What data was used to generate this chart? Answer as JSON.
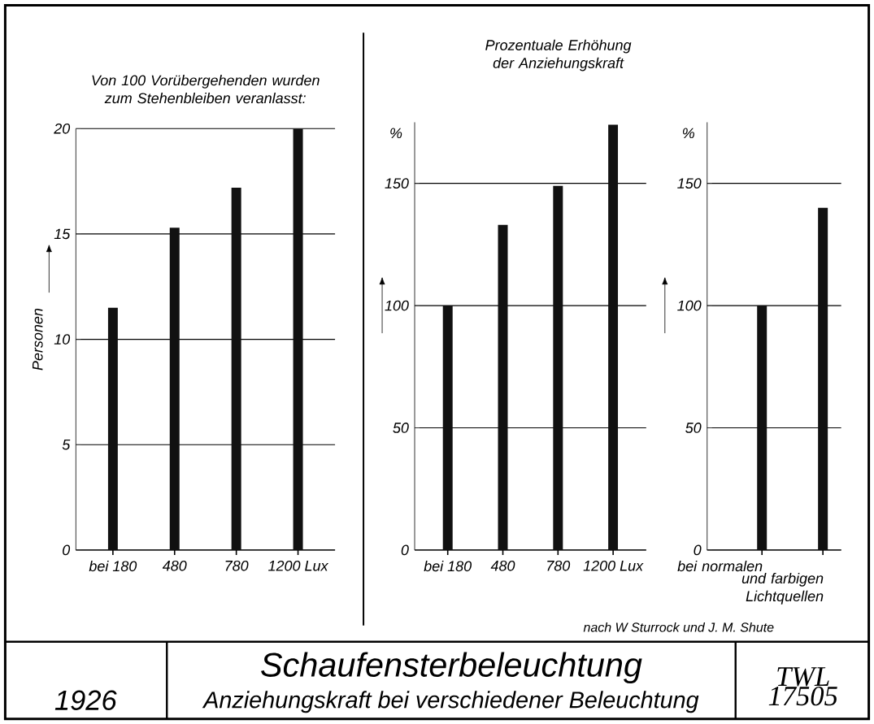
{
  "chart_data": [
    {
      "type": "bar",
      "title": "Von 100 Vorübergehenden wurden zum Stehenbleiben veranlasst:",
      "ylabel": "Personen",
      "categories": [
        "bei 180",
        "480",
        "780",
        "1200 Lux"
      ],
      "values": [
        11.5,
        15.3,
        17.2,
        20
      ],
      "color": "#111111",
      "ylim": [
        0,
        20
      ],
      "yticks": [
        0,
        5,
        10,
        15,
        20
      ],
      "grid": "y",
      "annotations": [
        "1926",
        "Schaufensterbeleuchtung",
        "Anziehungskraft bei verschiedener Beleuchtung",
        "TWL 17505"
      ]
    },
    {
      "type": "bar",
      "title": "Prozentuale Erhöhung der Anziehungskraft",
      "ylabel": "%",
      "categories": [
        "bei 180",
        "480",
        "780",
        "1200 Lux"
      ],
      "values": [
        100,
        133,
        149,
        174
      ],
      "color": "#111111",
      "ylim": [
        0,
        175
      ],
      "yticks": [
        0,
        50,
        100,
        150
      ],
      "grid": "y"
    },
    {
      "type": "bar",
      "ylabel": "%",
      "categories": [
        "bei normalen",
        "und farbigen Lichtquellen"
      ],
      "values": [
        100,
        140
      ],
      "color": "#111111",
      "ylim": [
        0,
        175
      ],
      "yticks": [
        0,
        50,
        100,
        150
      ],
      "grid": "y",
      "annotations": [
        "nach W Sturrock und J. M. Shute"
      ]
    }
  ]
}
